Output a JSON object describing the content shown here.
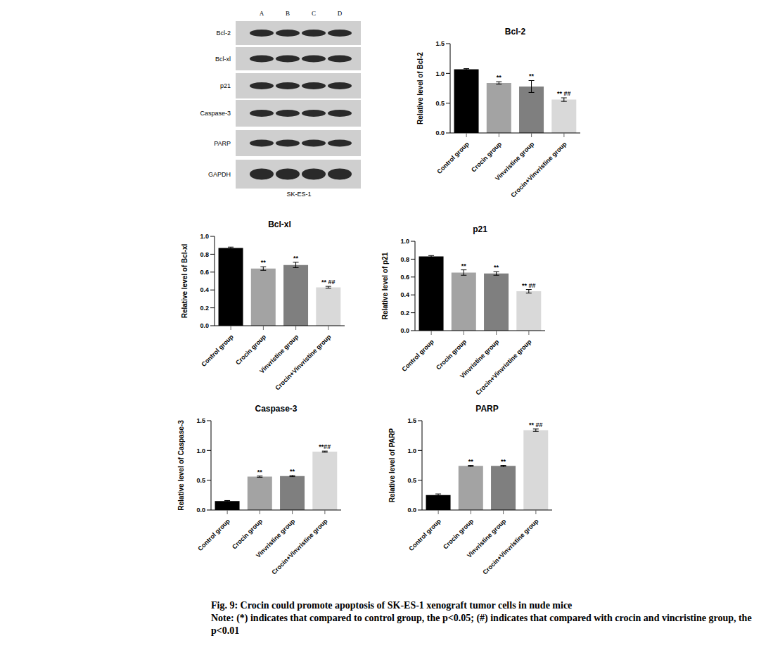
{
  "blot": {
    "lanes": [
      "A",
      "B",
      "C",
      "D"
    ],
    "rows": [
      "Bcl-2",
      "Bcl-xl",
      "p21",
      "Caspase-3",
      "PARP",
      "GAPDH"
    ],
    "cell_line": "SK-ES-1"
  },
  "chart_data": [
    {
      "type": "bar",
      "title": "Bcl-2",
      "ylabel": "Relative level of Bcl-2",
      "categories": [
        "Control group",
        "Crocin group",
        "Vinvristine group",
        "Crocin+Vinvristine group"
      ],
      "values": [
        1.07,
        0.84,
        0.78,
        0.56
      ],
      "errors": [
        0.01,
        0.02,
        0.1,
        0.03
      ],
      "annotations": [
        null,
        "**",
        "**",
        "** ##"
      ],
      "colors": [
        "#000000",
        "#a3a3a3",
        "#7f7f7f",
        "#d9d9d9"
      ],
      "ylim": [
        0,
        1.5
      ],
      "yticks": [
        {
          "value": 0,
          "label": "0.0"
        },
        {
          "value": 0.5,
          "label": "0.5"
        },
        {
          "value": 1,
          "label": "1.0"
        },
        {
          "value": 1.5,
          "label": "1.5"
        }
      ],
      "grid": false
    },
    {
      "type": "bar",
      "title": "Bcl-xl",
      "ylabel": "Relative level of Bcl-xl",
      "categories": [
        "Control group",
        "Crocin group",
        "Vinvristine group",
        "Crocin+Vinvristine group"
      ],
      "values": [
        0.87,
        0.64,
        0.68,
        0.43
      ],
      "errors": [
        0.01,
        0.02,
        0.03,
        0.01
      ],
      "annotations": [
        null,
        "**",
        "**",
        "** ##"
      ],
      "colors": [
        "#000000",
        "#a3a3a3",
        "#7f7f7f",
        "#d9d9d9"
      ],
      "ylim": [
        0,
        1
      ],
      "yticks": [
        {
          "value": 0,
          "label": "0.0"
        },
        {
          "value": 0.2,
          "label": "0.2"
        },
        {
          "value": 0.4,
          "label": "0.4"
        },
        {
          "value": 0.6,
          "label": "0.6"
        },
        {
          "value": 0.8,
          "label": "0.8"
        },
        {
          "value": 1,
          "label": "1.0"
        }
      ],
      "grid": false
    },
    {
      "type": "bar",
      "title": "p21",
      "ylabel": "Relative level of p21",
      "categories": [
        "Control group",
        "Crocin group",
        "Vinvristine group",
        "Crocin+Vinvristine group"
      ],
      "values": [
        0.83,
        0.65,
        0.64,
        0.44
      ],
      "errors": [
        0.01,
        0.03,
        0.02,
        0.02
      ],
      "annotations": [
        null,
        "**",
        "**",
        "** ##"
      ],
      "colors": [
        "#000000",
        "#a3a3a3",
        "#7f7f7f",
        "#d9d9d9"
      ],
      "ylim": [
        0,
        1
      ],
      "yticks": [
        {
          "value": 0,
          "label": "0.0"
        },
        {
          "value": 0.2,
          "label": "0.2"
        },
        {
          "value": 0.4,
          "label": "0.4"
        },
        {
          "value": 0.6,
          "label": "0.6"
        },
        {
          "value": 0.8,
          "label": "0.8"
        },
        {
          "value": 1,
          "label": "1.0"
        }
      ],
      "grid": false
    },
    {
      "type": "bar",
      "title": "Caspase-3",
      "ylabel": "Relative level of Caspase-3",
      "categories": [
        "Control group",
        "Crocin group",
        "Vinvristine group",
        "Crocin+Vinvristine group"
      ],
      "values": [
        0.15,
        0.56,
        0.57,
        0.98
      ],
      "errors": [
        0.01,
        0.01,
        0.01,
        0.01
      ],
      "annotations": [
        null,
        "**",
        "**",
        "**##"
      ],
      "colors": [
        "#000000",
        "#a3a3a3",
        "#7f7f7f",
        "#d9d9d9"
      ],
      "ylim": [
        0,
        1.5
      ],
      "yticks": [
        {
          "value": 0,
          "label": "0.0"
        },
        {
          "value": 0.5,
          "label": "0.5"
        },
        {
          "value": 1,
          "label": "1.0"
        },
        {
          "value": 1.5,
          "label": "1.5"
        }
      ],
      "grid": false
    },
    {
      "type": "bar",
      "title": "PARP",
      "ylabel": "Relative level of PARP",
      "categories": [
        "Control group",
        "Crocin group",
        "Vinvristine group",
        "Crocin+Vinvristine group"
      ],
      "values": [
        0.25,
        0.74,
        0.74,
        1.34
      ],
      "errors": [
        0.02,
        0.01,
        0.01,
        0.02
      ],
      "annotations": [
        null,
        "**",
        "**",
        "** ##"
      ],
      "colors": [
        "#000000",
        "#a3a3a3",
        "#7f7f7f",
        "#d9d9d9"
      ],
      "ylim": [
        0,
        1.5
      ],
      "yticks": [
        {
          "value": 0,
          "label": "0.0"
        },
        {
          "value": 0.5,
          "label": "0.5"
        },
        {
          "value": 1,
          "label": "1.0"
        },
        {
          "value": 1.5,
          "label": "1.5"
        }
      ],
      "grid": false
    }
  ],
  "caption": {
    "title": "Fig. 9: Crocin could promote apoptosis of SK-ES-1 xenograft tumor cells in nude mice",
    "note": "Note: (*) indicates that compared to control group, the p<0.05; (#) indicates that compared with crocin and vincristine group, the p<0.01"
  }
}
